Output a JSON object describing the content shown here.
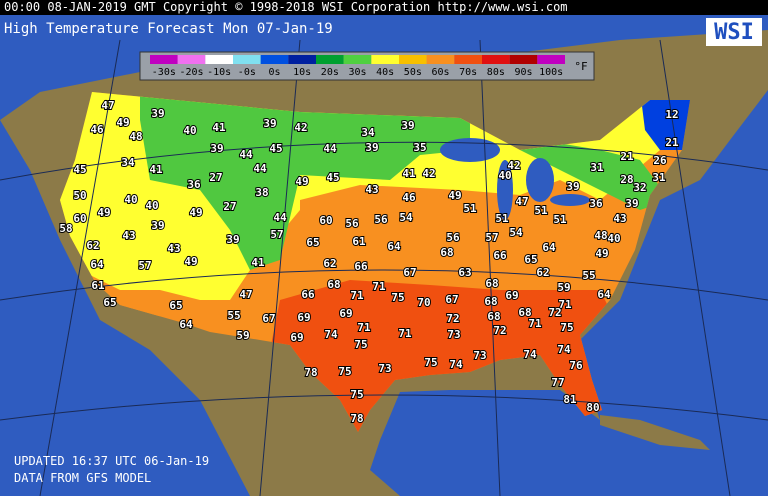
{
  "header": {
    "text": "00:00 08-JAN-2019 GMT Copyright © 1998-2018 WSI Corporation  http://www.wsi.com"
  },
  "title": {
    "text": "High Temperature Forecast  Mon 07-Jan-19"
  },
  "logo": {
    "text": "WSI"
  },
  "legend": {
    "labels": [
      "-30s",
      "-20s",
      "-10s",
      "-0s",
      "0s",
      "10s",
      "20s",
      "30s",
      "40s",
      "50s",
      "60s",
      "70s",
      "80s",
      "90s",
      "100s"
    ],
    "colors": [
      "#c000c0",
      "#f070f0",
      "#ffffff",
      "#80e0f0",
      "#0050e0",
      "#0020a0",
      "#00a030",
      "#50d040",
      "#ffff30",
      "#f8c000",
      "#f89020",
      "#f05010",
      "#e01010",
      "#b00000",
      "#c000c0"
    ],
    "unit": "°F"
  },
  "map": {
    "labels": [
      47,
      39,
      49,
      46,
      48,
      40,
      41,
      39,
      42,
      34,
      39,
      12,
      21,
      39,
      44,
      45,
      44,
      39,
      35,
      21,
      26,
      34,
      41,
      44,
      45,
      27,
      49,
      45,
      42,
      41,
      42,
      31,
      28,
      31,
      36,
      38,
      43,
      32,
      40,
      39,
      50,
      40,
      40,
      27,
      46,
      49,
      47,
      51,
      36,
      39,
      49,
      60,
      58,
      39,
      49,
      44,
      60,
      56,
      56,
      54,
      51,
      51,
      51,
      43,
      57,
      61,
      64,
      56,
      57,
      54,
      64,
      48,
      62,
      43,
      43,
      39,
      65,
      40,
      49,
      64,
      57,
      49,
      41,
      62,
      66,
      68,
      67,
      63,
      66,
      65,
      62,
      55,
      61,
      68,
      71,
      68,
      59,
      64,
      65,
      65,
      47,
      66,
      71,
      75,
      70,
      67,
      69,
      68,
      71,
      64,
      55,
      67,
      69,
      69,
      72,
      68,
      68,
      72,
      71,
      75,
      59,
      69,
      74,
      71,
      71,
      73,
      72,
      75,
      74,
      73,
      74,
      75,
      74,
      73,
      78,
      75,
      76,
      77,
      75,
      81,
      80,
      78
    ]
  },
  "footer": {
    "updated": "UPDATED 16:37 UTC 06-Jan-19",
    "source": "DATA FROM GFS MODEL"
  }
}
